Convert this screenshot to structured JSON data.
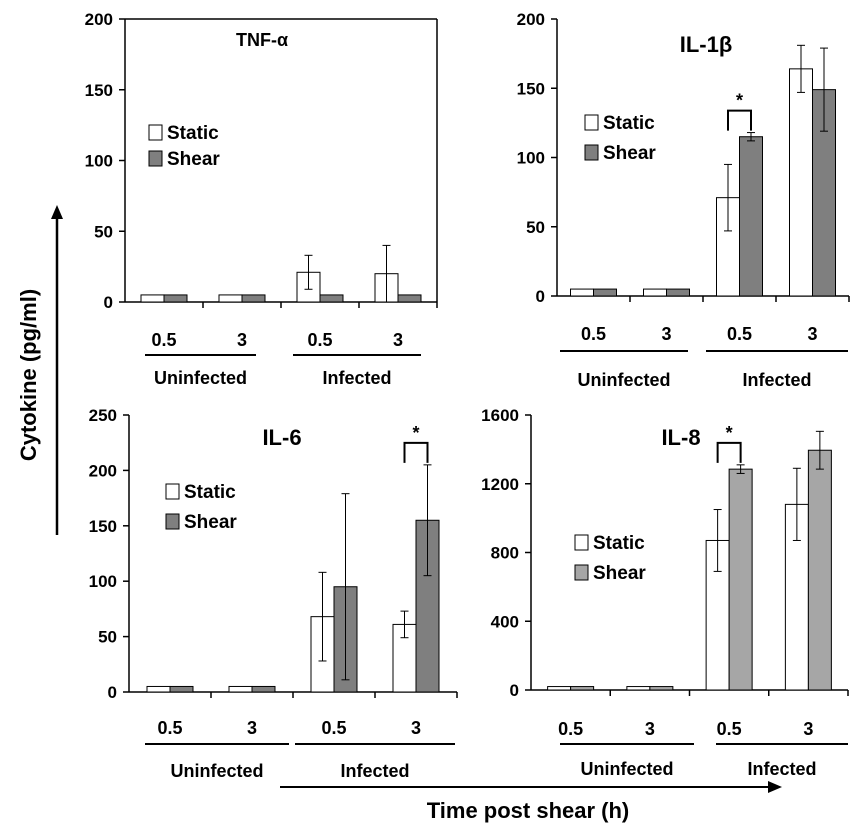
{
  "figure": {
    "shared_ylabel": "Cytokine (pg/ml)",
    "shared_xlabel": "Time post shear (h)"
  },
  "chart_data": [
    {
      "type": "bar",
      "title": "TNF-α",
      "ylim": [
        0,
        200
      ],
      "yticks": [
        0,
        50,
        100,
        150,
        200
      ],
      "categories": [
        "0.5",
        "3",
        "0.5",
        "3"
      ],
      "groups": [
        "Uninfected",
        "Infected"
      ],
      "series": [
        {
          "name": "Static",
          "color": "#ffffff",
          "values": [
            5,
            5,
            21,
            20
          ],
          "errors": [
            0,
            0,
            12,
            20
          ]
        },
        {
          "name": "Shear",
          "color": "#7f7f7f",
          "values": [
            5,
            5,
            5,
            5
          ],
          "errors": [
            0,
            0,
            0,
            0
          ]
        }
      ],
      "significance": [],
      "legend": "center-left"
    },
    {
      "type": "bar",
      "title": "IL-1β",
      "ylim": [
        0,
        200
      ],
      "yticks": [
        0,
        50,
        100,
        150,
        200
      ],
      "categories": [
        "0.5",
        "3",
        "0.5",
        "3"
      ],
      "groups": [
        "Uninfected",
        "Infected"
      ],
      "series": [
        {
          "name": "Static",
          "color": "#ffffff",
          "values": [
            5,
            5,
            71,
            164
          ],
          "errors": [
            0,
            0,
            24,
            17
          ]
        },
        {
          "name": "Shear",
          "color": "#7f7f7f",
          "values": [
            5,
            5,
            115,
            149
          ],
          "errors": [
            0,
            0,
            3,
            30
          ]
        }
      ],
      "significance": [
        {
          "category": 2,
          "label": "*"
        }
      ],
      "legend": "center-left"
    },
    {
      "type": "bar",
      "title": "IL-6",
      "ylim": [
        0,
        250
      ],
      "yticks": [
        0,
        50,
        100,
        150,
        200,
        250
      ],
      "categories": [
        "0.5",
        "3",
        "0.5",
        "3"
      ],
      "groups": [
        "Uninfected",
        "Infected"
      ],
      "series": [
        {
          "name": "Static",
          "color": "#ffffff",
          "values": [
            5,
            5,
            68,
            61
          ],
          "errors": [
            0,
            0,
            40,
            12
          ]
        },
        {
          "name": "Shear",
          "color": "#7f7f7f",
          "values": [
            5,
            5,
            95,
            155
          ],
          "errors": [
            0,
            0,
            84,
            50
          ]
        }
      ],
      "significance": [
        {
          "category": 3,
          "label": "*"
        }
      ],
      "legend": "center-left"
    },
    {
      "type": "bar",
      "title": "IL-8",
      "ylim": [
        0,
        1600
      ],
      "yticks": [
        0,
        400,
        800,
        1200,
        1600
      ],
      "categories": [
        "0.5",
        "3",
        "0.5",
        "3"
      ],
      "groups": [
        "Uninfected",
        "Infected"
      ],
      "series": [
        {
          "name": "Static",
          "color": "#ffffff",
          "values": [
            20,
            20,
            870,
            1080
          ],
          "errors": [
            0,
            0,
            180,
            210
          ]
        },
        {
          "name": "Shear",
          "color": "#a6a6a6",
          "values": [
            20,
            20,
            1285,
            1395
          ],
          "errors": [
            0,
            0,
            25,
            110
          ]
        }
      ],
      "significance": [
        {
          "category": 2,
          "label": "*"
        }
      ],
      "legend": "center-left"
    }
  ]
}
